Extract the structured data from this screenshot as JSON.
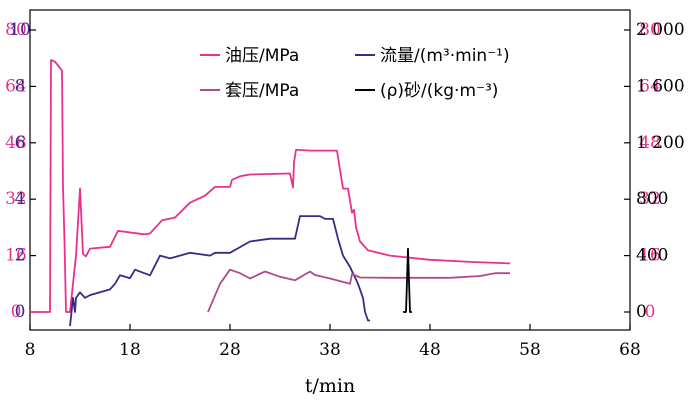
{
  "chart_data": {
    "type": "line",
    "title": "",
    "xlabel": "t/min",
    "x_ticks": [
      8,
      18,
      28,
      38,
      48,
      58,
      68
    ],
    "xlim": [
      8,
      68
    ],
    "grid": false,
    "legend": "top",
    "axes": {
      "pressure": {
        "ticks": [
          0,
          16,
          32,
          48,
          64,
          80
        ],
        "ylim": [
          0,
          80
        ],
        "color": "#e8318f"
      },
      "flow": {
        "ticks": [
          0,
          2,
          4,
          6,
          8,
          10
        ],
        "ylim": [
          0,
          10
        ],
        "color": "#3a2a86"
      },
      "density": {
        "ticks": [
          "0",
          "400",
          "800",
          "1 200",
          "1 600",
          "2 000"
        ],
        "ylim": [
          0,
          2000
        ],
        "color": "#000000"
      }
    },
    "series": [
      {
        "name": "油压/MPa",
        "axis": "pressure",
        "color": "#e8318f",
        "x": [
          8.0,
          10.0,
          10.1,
          10.5,
          11.2,
          11.3,
          11.45,
          11.6,
          12.0,
          12.6,
          13.0,
          13.3,
          13.6,
          14.0,
          16.0,
          16.8,
          19.5,
          20.0,
          21.2,
          22.0,
          22.5,
          24.0,
          25.5,
          26.5,
          28.0,
          28.2,
          29.0,
          30.0,
          34.0,
          34.3,
          34.4,
          34.6,
          34.9,
          36.0,
          38.7,
          39.3,
          39.8,
          40.2,
          40.4,
          40.6,
          41.0,
          41.8,
          44.0,
          48.0,
          52.0,
          56.0
        ],
        "y": [
          0,
          0,
          71.5,
          71.0,
          68.5,
          35.5,
          20.0,
          0,
          0,
          16.0,
          35.0,
          16.5,
          15.8,
          18.0,
          18.5,
          23.0,
          22.0,
          22.3,
          26.0,
          26.5,
          26.8,
          31.0,
          33.0,
          35.5,
          35.5,
          37.5,
          38.5,
          39.0,
          39.3,
          35.3,
          42.5,
          46.0,
          46.0,
          45.8,
          45.8,
          35.0,
          35.0,
          28.2,
          29.0,
          24.0,
          20.0,
          17.5,
          16.0,
          14.8,
          14.2,
          13.8
        ]
      },
      {
        "name": "流量/(m³·min⁻¹)",
        "axis": "flow",
        "color": "#3a2a86",
        "x": [
          12.0,
          12.3,
          12.5,
          12.6,
          13.0,
          13.5,
          14.0,
          15.0,
          16.0,
          16.5,
          17.0,
          18.0,
          18.5,
          20.0,
          21.0,
          22.0,
          24.0,
          26.0,
          26.5,
          28.0,
          29.0,
          30.0,
          32.0,
          33.5,
          34.5,
          35.0,
          37.0,
          37.5,
          38.3,
          38.8,
          39.3,
          40.0,
          40.8,
          41.3,
          41.5,
          41.8,
          42.0
        ],
        "y": [
          -0.5,
          0.5,
          0.0,
          0.5,
          0.7,
          0.5,
          0.6,
          0.7,
          0.8,
          1.0,
          1.3,
          1.2,
          1.5,
          1.3,
          2.0,
          1.9,
          2.1,
          2.0,
          2.1,
          2.1,
          2.3,
          2.5,
          2.6,
          2.6,
          2.6,
          3.4,
          3.4,
          3.3,
          3.3,
          2.6,
          2.0,
          1.6,
          1.0,
          0.5,
          0.0,
          -0.3,
          -0.3
        ]
      },
      {
        "name": "套压/MPa",
        "axis": "pressure",
        "color": "#b04a8f",
        "x": [
          25.8,
          27.0,
          28.0,
          29.0,
          30.0,
          31.5,
          33.0,
          34.5,
          36.0,
          36.5,
          38.0,
          40.0,
          40.2,
          41.0,
          44.0,
          50.0,
          53.0,
          54.5,
          56.0
        ],
        "y": [
          0,
          8.0,
          12.0,
          11.0,
          9.5,
          11.5,
          10.0,
          9.0,
          11.5,
          10.5,
          9.5,
          8.0,
          10.8,
          9.8,
          9.7,
          9.7,
          10.2,
          11.0,
          11.0
        ]
      },
      {
        "name": "(ρ)砂/(kg·m⁻³)",
        "axis": "density",
        "color": "#000000",
        "x": [
          45.3,
          45.6,
          45.7,
          45.8,
          45.9,
          46.0,
          46.2
        ],
        "y": [
          0,
          0,
          220,
          450,
          220,
          0,
          0
        ]
      }
    ]
  }
}
